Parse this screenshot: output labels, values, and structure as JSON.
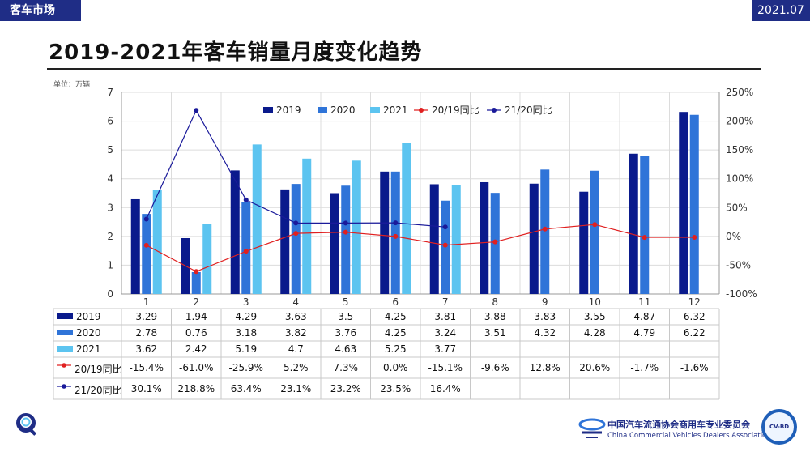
{
  "header": {
    "section": "客车市场",
    "period": "2021.07"
  },
  "page_title": "2019-2021年客车销量月度变化趋势",
  "unit_label": "单位：万辆",
  "footer": {
    "org_cn": "中国汽车流通协会商用车专业委员会",
    "org_en": "China Commercial Vehicles Dealers Association",
    "badge_text": "CV-BD"
  },
  "colors": {
    "s2019": "#0a1a8c",
    "s2020": "#2f74d8",
    "s2021": "#5cc4f0",
    "r2019": "#e02020",
    "r2021": "#1a1a9a",
    "accent": "#1f2d86"
  },
  "icons": {
    "magnifier": "magnifier-icon",
    "logo": "cccda-logo-icon",
    "badge": "cvbd-badge-icon"
  },
  "chart_data": {
    "type": "bar",
    "categories": [
      "1",
      "2",
      "3",
      "4",
      "5",
      "6",
      "7",
      "8",
      "9",
      "10",
      "11",
      "12"
    ],
    "ylim": [
      0,
      7
    ],
    "yticks": [
      "0",
      "1",
      "2",
      "3",
      "4",
      "5",
      "6",
      "7"
    ],
    "y2lim": [
      -100,
      250
    ],
    "y2ticks": [
      "-100%",
      "-50%",
      "0%",
      "50%",
      "100%",
      "150%",
      "200%",
      "250%"
    ],
    "legend_position": "top",
    "series": [
      {
        "name": "2019",
        "values": [
          3.29,
          1.94,
          4.29,
          3.63,
          3.5,
          4.25,
          3.81,
          3.88,
          3.83,
          3.55,
          4.87,
          6.32
        ]
      },
      {
        "name": "2020",
        "values": [
          2.78,
          0.76,
          3.18,
          3.82,
          3.76,
          4.25,
          3.24,
          3.51,
          4.32,
          4.28,
          4.79,
          6.22
        ]
      },
      {
        "name": "2021",
        "values": [
          3.62,
          2.42,
          5.19,
          4.7,
          4.63,
          5.25,
          3.77,
          null,
          null,
          null,
          null,
          null
        ]
      }
    ],
    "line_series": [
      {
        "name": "20/19同比",
        "values": [
          -15.4,
          -61.0,
          -25.9,
          5.2,
          7.3,
          0.0,
          -15.1,
          -9.6,
          12.8,
          20.6,
          -1.7,
          -1.6
        ]
      },
      {
        "name": "21/20同比",
        "values": [
          30.1,
          218.8,
          63.4,
          23.1,
          23.2,
          23.5,
          16.4,
          null,
          null,
          null,
          null,
          null
        ]
      }
    ],
    "table": {
      "s2019": [
        "3.29",
        "1.94",
        "4.29",
        "3.63",
        "3.5",
        "4.25",
        "3.81",
        "3.88",
        "3.83",
        "3.55",
        "4.87",
        "6.32"
      ],
      "s2020": [
        "2.78",
        "0.76",
        "3.18",
        "3.82",
        "3.76",
        "4.25",
        "3.24",
        "3.51",
        "4.32",
        "4.28",
        "4.79",
        "6.22"
      ],
      "s2021": [
        "3.62",
        "2.42",
        "5.19",
        "4.7",
        "4.63",
        "5.25",
        "3.77",
        "",
        "",
        "",
        "",
        ""
      ],
      "r2019": [
        "-15.4%",
        "-61.0%",
        "-25.9%",
        "5.2%",
        "7.3%",
        "0.0%",
        "-15.1%",
        "-9.6%",
        "12.8%",
        "20.6%",
        "-1.7%",
        "-1.6%"
      ],
      "r2021": [
        "30.1%",
        "218.8%",
        "63.4%",
        "23.1%",
        "23.2%",
        "23.5%",
        "16.4%",
        "",
        "",
        "",
        "",
        ""
      ]
    }
  }
}
